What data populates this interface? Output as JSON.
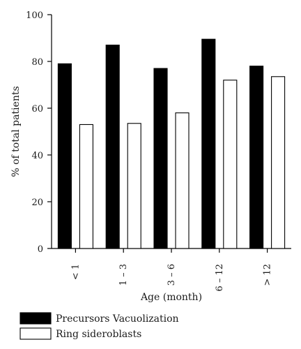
{
  "chart_data": {
    "type": "bar",
    "categories": [
      "< 1",
      "1 – 3",
      "3 – 6",
      "6 – 12",
      "> 12"
    ],
    "series": [
      {
        "name": "Precursors Vacuolization",
        "values": [
          79,
          87,
          77,
          89.5,
          78
        ],
        "color": "#000000"
      },
      {
        "name": "Ring sideroblasts",
        "values": [
          53,
          53.5,
          58,
          72,
          73.5
        ],
        "color": "#ffffff"
      }
    ],
    "xlabel": "Age (month)",
    "ylabel": "% of total patients",
    "ylim": [
      0,
      100
    ],
    "yticks": [
      0,
      20,
      40,
      60,
      80,
      100
    ],
    "legend_position": "bottom-left",
    "grid": false
  }
}
